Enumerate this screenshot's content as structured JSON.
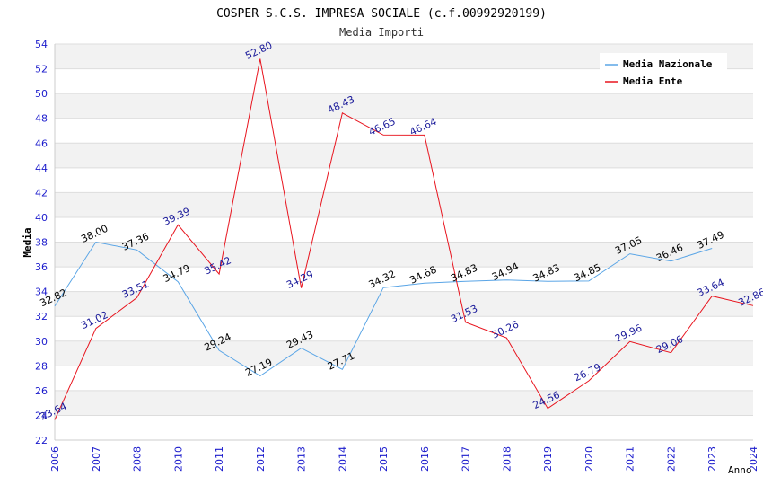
{
  "chart_data": {
    "type": "line",
    "title": "COSPER S.C.S. IMPRESA SOCIALE (c.f.00992920199)",
    "subtitle": "Media Importi",
    "xlabel": "Anno",
    "ylabel": "Media",
    "ylim": [
      22,
      54
    ],
    "ytick_step": 2,
    "x": [
      "2006",
      "2007",
      "2008",
      "2010",
      "2011",
      "2012",
      "2013",
      "2014",
      "2015",
      "2016",
      "2017",
      "2018",
      "2019",
      "2020",
      "2021",
      "2022",
      "2023",
      "2024"
    ],
    "series": [
      {
        "name": "Media Nazionale",
        "color": "#5aa5e6",
        "label_color": "#000000",
        "values": [
          32.82,
          38.0,
          37.36,
          34.79,
          29.24,
          27.19,
          29.43,
          27.71,
          34.32,
          34.68,
          34.83,
          34.94,
          34.83,
          34.85,
          37.05,
          36.46,
          37.49,
          null
        ],
        "labels": [
          "32.82",
          "38.00",
          "37.36",
          "34.79",
          "29.24",
          "27.19",
          "29.43",
          "27.71",
          "34.32",
          "34.68",
          "34.83",
          "34.94",
          "34.83",
          "34.85",
          "37.05",
          "36.46",
          "37.49",
          null
        ]
      },
      {
        "name": "Media Ente",
        "color": "#e8141e",
        "label_color": "#1a1a9a",
        "values": [
          23.64,
          31.02,
          33.51,
          39.39,
          35.42,
          52.8,
          34.29,
          48.43,
          46.65,
          46.64,
          31.53,
          30.26,
          24.56,
          26.79,
          29.96,
          29.06,
          33.64,
          32.86
        ],
        "labels": [
          "23.64",
          "31.02",
          "33.51",
          "39.39",
          "35.42",
          "52.80",
          "34.29",
          "48.43",
          "46.65",
          "46.64",
          "31.53",
          "30.26",
          "24.56",
          "26.79",
          "29.96",
          "29.06",
          "33.64",
          "32.86"
        ]
      }
    ],
    "legend_position": "top-right",
    "grid": true,
    "colors": {
      "axis_tick_text": "#1a1acc",
      "band": "#f2f2f2",
      "grid": "#dddddd",
      "title": "#000000",
      "subtitle": "#333333"
    }
  }
}
